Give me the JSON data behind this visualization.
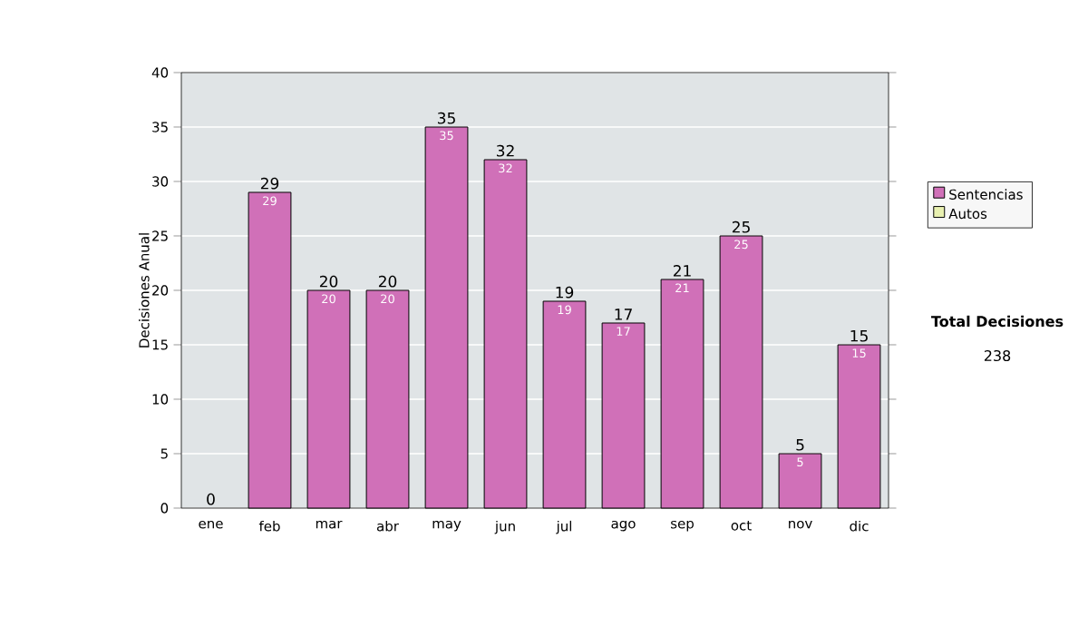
{
  "chart_data": {
    "type": "bar",
    "stacked": true,
    "ylabel": "Decisiones Anual",
    "categories": [
      "ene",
      "feb",
      "mar",
      "abr",
      "may",
      "jun",
      "jul",
      "ago",
      "sep",
      "oct",
      "nov",
      "dic"
    ],
    "series": [
      {
        "name": "Sentencias",
        "color": "#d070b8",
        "values": [
          0,
          29,
          20,
          20,
          35,
          32,
          19,
          17,
          21,
          25,
          5,
          15
        ],
        "value_labels": [
          null,
          "29",
          "20",
          "20",
          "35",
          "32",
          "19",
          "17",
          "21",
          "25",
          "5",
          "15"
        ]
      },
      {
        "name": "Autos",
        "color": "#e8f0b0",
        "values": [
          0,
          0,
          0,
          0,
          0,
          0,
          0,
          0,
          0,
          0,
          0,
          0
        ]
      }
    ],
    "totals": [
      "0",
      "29",
      "20",
      "20",
      "35",
      "32",
      "19",
      "17",
      "21",
      "25",
      "5",
      "15"
    ],
    "ylim": [
      0,
      40
    ],
    "yticks": [
      0,
      5,
      10,
      15,
      20,
      25,
      30,
      35,
      40
    ],
    "grid": "y",
    "legend": "right",
    "annotations": [
      "Total Decisiones",
      "238"
    ]
  }
}
